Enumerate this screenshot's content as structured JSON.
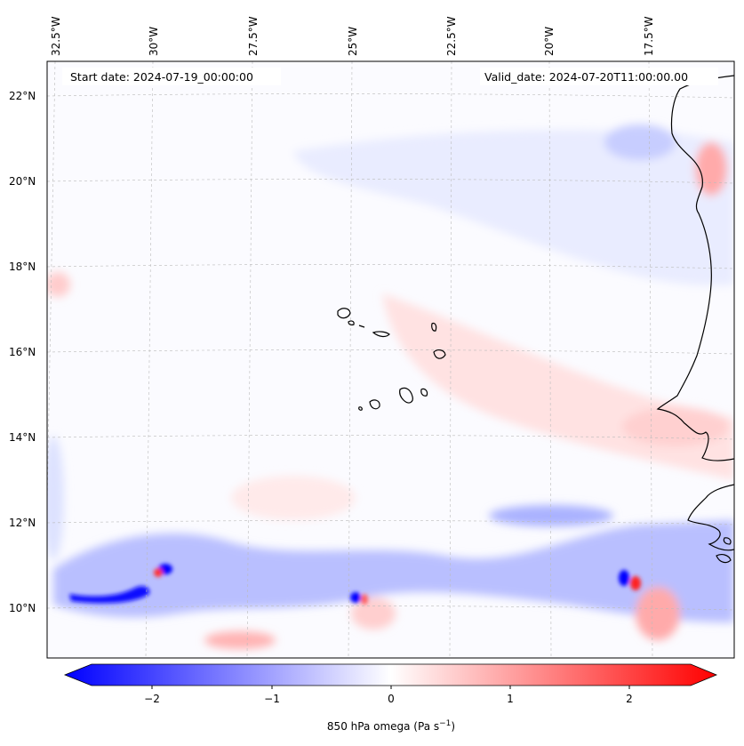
{
  "map": {
    "longitude_labels": [
      "32.5°W",
      "30°W",
      "27.5°W",
      "25°W",
      "22.5°W",
      "20°W",
      "17.5°W"
    ],
    "latitude_labels": [
      "22°N",
      "20°N",
      "18°N",
      "16°N",
      "14°N",
      "12°N",
      "10°N"
    ],
    "start_date": "Start date: 2024-07-19_00:00:00",
    "valid_date": "Valid_date: 2024-07-20T11:00:00.00",
    "field_colormap": "bwr",
    "colors": {
      "negative": "#0000ff",
      "zero": "#ffffff",
      "positive": "#ff0000",
      "coastline": "#000000"
    }
  },
  "colorbar": {
    "tick_labels": [
      "−2",
      "−1",
      "0",
      "1",
      "2"
    ],
    "label_main": "850 hPa omega (Pa s",
    "label_sup": "−1",
    "label_end": ")",
    "range": [
      -2.6,
      2.6
    ]
  }
}
